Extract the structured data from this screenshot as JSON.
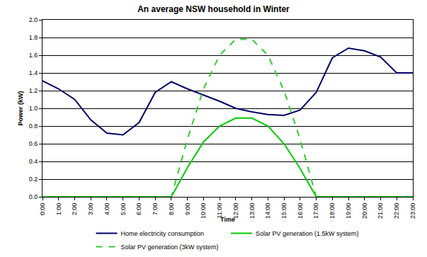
{
  "chart_data": {
    "type": "line",
    "title": "An average NSW household in Winter",
    "x_label": "Time",
    "y_label": "Power (kW)",
    "categories": [
      "0:00",
      "1:00",
      "2:00",
      "3:00",
      "4:00",
      "5:00",
      "6:00",
      "7:00",
      "8:00",
      "9:00",
      "10:00",
      "11:00",
      "12:00",
      "13:00",
      "14:00",
      "15:00",
      "16:00",
      "17:00",
      "18:00",
      "19:00",
      "20:00",
      "21:00",
      "22:00",
      "23:00"
    ],
    "series": [
      {
        "name": "Home electricity consumption",
        "color": "#000066",
        "line_style": "solid",
        "values": [
          1.31,
          1.22,
          1.1,
          0.87,
          0.72,
          0.7,
          0.84,
          1.18,
          1.3,
          1.22,
          1.15,
          1.08,
          1.0,
          0.96,
          0.93,
          0.92,
          0.98,
          1.18,
          1.57,
          1.68,
          1.65,
          1.58,
          1.4,
          1.4
        ]
      },
      {
        "name": "Solar PV generation (1.5kW system)",
        "color": "#00cc00",
        "line_style": "solid",
        "values": [
          0,
          0,
          0,
          0,
          0,
          0,
          0,
          0,
          0,
          0.33,
          0.62,
          0.8,
          0.89,
          0.89,
          0.8,
          0.6,
          0.32,
          0,
          0,
          0,
          0,
          0,
          0,
          0
        ]
      },
      {
        "name": "Solar PV generation (3kW system)",
        "color": "#33cc33",
        "line_style": "dash",
        "values": [
          0,
          0,
          0,
          0,
          0,
          0,
          0,
          0,
          0,
          0.65,
          1.22,
          1.6,
          1.78,
          1.78,
          1.6,
          1.2,
          0.65,
          0,
          0,
          0,
          0,
          0,
          0,
          0
        ]
      }
    ],
    "ylim": [
      0,
      2
    ],
    "yticks": [
      {
        "value": 0,
        "label": "0.0"
      },
      0.2,
      0.4,
      0.6,
      0.8,
      {
        "value": 1,
        "label": "1.0"
      },
      1.2,
      1.4,
      1.6,
      1.8,
      {
        "value": 2,
        "label": "2.0"
      }
    ],
    "grid": true,
    "legend": "bottom"
  }
}
